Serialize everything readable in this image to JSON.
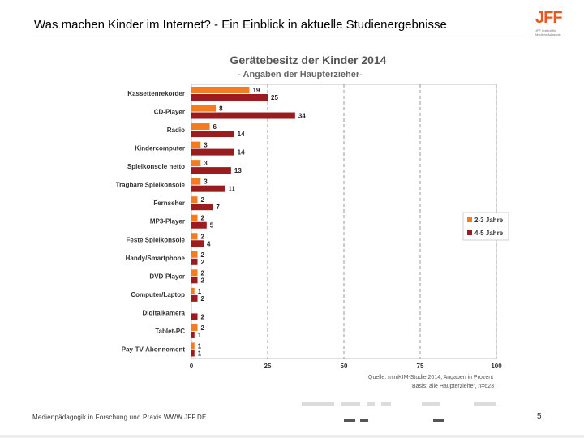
{
  "header": {
    "title_bold": "Was machen Kinder im Internet?",
    "title_rest": " - Ein Einblick in aktuelle Studienergebnisse"
  },
  "logo": {
    "mark": "JFF",
    "subline": "JFF Institut für Medienpädagogik"
  },
  "footer": {
    "text": "Medienpädagogik in Forschung und Praxis WWW.JFF.DE",
    "page": "5"
  },
  "colors": {
    "series1": "#f47b20",
    "series2": "#9b1b1f",
    "accent": "#e8581c"
  },
  "chart_data": {
    "type": "bar",
    "orientation": "horizontal",
    "title": "Gerätebesitz der Kinder 2014",
    "subtitle": "- Angaben der Haupterzieher-",
    "categories": [
      "Kassettenrekorder",
      "CD-Player",
      "Radio",
      "Kindercomputer",
      "Spielkonsole netto",
      "Tragbare Spielkonsole",
      "Fernseher",
      "MP3-Player",
      "Feste Spielkonsole",
      "Handy/Smartphone",
      "DVD-Player",
      "Computer/Laptop",
      "Digitalkamera",
      "Tablet-PC",
      "Pay-TV-Abonnement"
    ],
    "series": [
      {
        "name": "2-3 Jahre",
        "values": [
          19,
          8,
          6,
          3,
          3,
          3,
          2,
          2,
          2,
          2,
          2,
          1,
          null,
          2,
          1
        ]
      },
      {
        "name": "4-5 Jahre",
        "values": [
          25,
          34,
          14,
          14,
          13,
          11,
          7,
          5,
          4,
          2,
          2,
          2,
          2,
          1,
          1
        ]
      }
    ],
    "xlim": [
      0,
      100
    ],
    "xticks": [
      0,
      25,
      50,
      75,
      100
    ],
    "grid": true,
    "legend_position": "right",
    "source_line1": "Quelle: miniKIM-Studie 2014, Angaben in Prozent",
    "source_line2": "Basis: alle Haupterzieher, n=623"
  }
}
